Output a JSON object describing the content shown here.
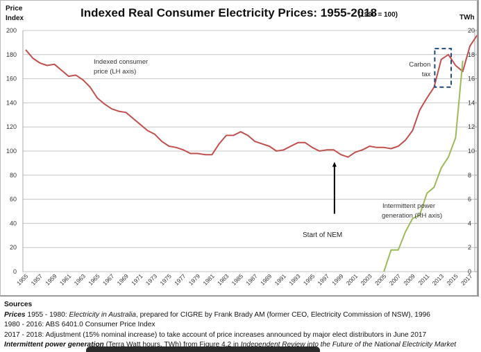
{
  "chart_data": {
    "type": "line",
    "title": "Indexed Real Consumer Electricity Prices: 1955-2018",
    "title_note": "(1990 = 100)",
    "left_axis_label": [
      "Price",
      "Index"
    ],
    "right_axis_label": "TWh",
    "xlabel": "",
    "ylim_left": [
      0,
      200
    ],
    "ylim_right": [
      0,
      20
    ],
    "left_ticks": [
      0,
      20,
      40,
      60,
      80,
      100,
      120,
      140,
      160,
      180,
      200
    ],
    "right_ticks": [
      0,
      2,
      4,
      6,
      8,
      10,
      12,
      14,
      16,
      18,
      20
    ],
    "x_tick_labels": [
      "1955",
      "1957",
      "1959",
      "1961",
      "1963",
      "1965",
      "1967",
      "1969",
      "1971",
      "1973",
      "1975",
      "1977",
      "1979",
      "1981",
      "1983",
      "1985",
      "1987",
      "1989",
      "1991",
      "1993",
      "1995",
      "1997",
      "1999",
      "2001",
      "2003",
      "2005",
      "2007",
      "2009",
      "2011",
      "2013",
      "2015",
      "2017"
    ],
    "x_range": [
      1955,
      2018
    ],
    "grid": true,
    "series": [
      {
        "name": "Indexed consumer price (LH axis)",
        "axis": "left",
        "color": "#c0504d",
        "x": [
          1955,
          1956,
          1957,
          1958,
          1959,
          1960,
          1961,
          1962,
          1963,
          1964,
          1965,
          1966,
          1967,
          1968,
          1969,
          1970,
          1971,
          1972,
          1973,
          1974,
          1975,
          1976,
          1977,
          1978,
          1979,
          1980,
          1981,
          1982,
          1983,
          1984,
          1985,
          1986,
          1987,
          1988,
          1989,
          1990,
          1991,
          1992,
          1993,
          1994,
          1995,
          1996,
          1997,
          1998,
          1999,
          2000,
          2001,
          2002,
          2003,
          2004,
          2005,
          2006,
          2007,
          2008,
          2009,
          2010,
          2011,
          2012,
          2013,
          2014,
          2015,
          2016,
          2017,
          2018
        ],
        "values": [
          184,
          177,
          173,
          171,
          172,
          167,
          162,
          163,
          159,
          153,
          144,
          139,
          135,
          133,
          132,
          127,
          122,
          117,
          114,
          108,
          104,
          103,
          101,
          98,
          98,
          97,
          97,
          106,
          113,
          113,
          116,
          113,
          108,
          106,
          104,
          100,
          101,
          104,
          107,
          107,
          103,
          100,
          101,
          101,
          97,
          95,
          99,
          101,
          104,
          103,
          103,
          102,
          104,
          109,
          117,
          134,
          144,
          153,
          176,
          180,
          171,
          166,
          187,
          196
        ]
      },
      {
        "name": "Intermittent power generation (RH axis)",
        "axis": "right",
        "color": "#9bbb59",
        "x": [
          2005,
          2006,
          2007,
          2008,
          2009,
          2010,
          2011,
          2012,
          2013,
          2014,
          2015,
          2016
        ],
        "values": [
          0,
          1.8,
          1.8,
          3.3,
          4.4,
          4.7,
          6.5,
          7.0,
          8.6,
          9.5,
          11.1,
          17.5
        ]
      }
    ],
    "annotations": [
      {
        "text": [
          "Indexed consumer",
          "price (LH axis)"
        ],
        "target": "price series label"
      },
      {
        "text": [
          "Carbon",
          "tax"
        ],
        "box_years": [
          2012,
          2014
        ],
        "box_values": [
          153,
          185
        ],
        "box_color": "#1f497d",
        "style": "dashed"
      },
      {
        "text": [
          "Start of NEM"
        ],
        "arrow_year": 1998,
        "arrow_from": 48,
        "arrow_to": 91
      },
      {
        "text": [
          "Intermittent power",
          "generation (RH axis)"
        ],
        "target": "intermittent series label"
      }
    ]
  },
  "sources": {
    "heading": "Sources",
    "lines": [
      [
        {
          "t": "Prices",
          "s": "bi"
        },
        {
          "t": " 1955 - 1980: ",
          "s": ""
        },
        {
          "t": "Electricity in Australia",
          "s": "i"
        },
        {
          "t": ", prepared for CIGRE by Frank Brady AM (former CEO, Electricity Commission of NSW), 1996",
          "s": ""
        }
      ],
      [
        {
          "t": "1980 - 2016: ABS 6401.0 Consumer Price Index",
          "s": ""
        }
      ],
      [
        {
          "t": "2017 - 2018: Adjustment (15% nominal increase) to take account of price increases announced by major elect distributors in June 2017",
          "s": ""
        }
      ],
      [
        {
          "t": "Intermittent power generation",
          "s": "bi"
        },
        {
          "t": " (Terra Watt hours, TWh) from Figure 4.2 in ",
          "s": ""
        },
        {
          "t": "Independent Review into the Future of the National Electricity Market",
          "s": "i"
        }
      ]
    ]
  }
}
